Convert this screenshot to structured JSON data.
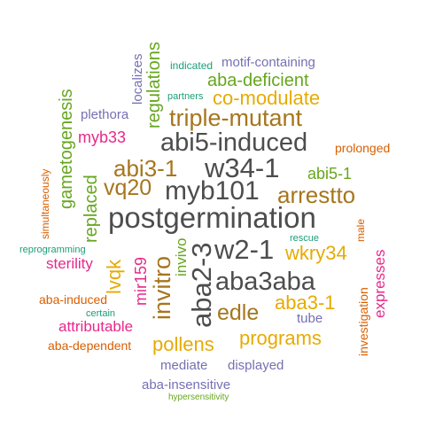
{
  "colors": {
    "dark_gray": "#4d4d4d",
    "brown": "#a6761d",
    "gold": "#e6ab02",
    "green": "#66a61e",
    "teal": "#1b9e77",
    "orange": "#d95f02",
    "purple": "#7570b3",
    "magenta": "#e7298a"
  },
  "words": {
    "postgermination": "postgermination",
    "abi5_induced": "abi5-induced",
    "w34_1": "w34-1",
    "myb101": "myb101",
    "aba3aba": "aba3aba",
    "w2_1": "w2-1",
    "aba2_3": "aba2-3",
    "triple_mutant": "triple-mutant",
    "abi3_1": "abi3-1",
    "arrestto": "arrestto",
    "vq20": "vq20",
    "invitro": "invitro",
    "edle": "edle",
    "co_modulate": "co-modulate",
    "regulations": "regulations",
    "aba_deficient": "aba-deficient",
    "gametogenesis": "gametogenesis",
    "replaced": "replaced",
    "abi5_1": "abi5-1",
    "wkry34": "wkry34",
    "aba3_1": "aba3-1",
    "programs": "programs",
    "pollens": "pollens",
    "lvqk": "lvqk",
    "invivo": "invivo",
    "mir159": "mir159",
    "myb33": "myb33",
    "sterility": "sterility",
    "attributable": "attributable",
    "expresses": "expresses",
    "motif_containing": "motif-containing",
    "localizes": "localizes",
    "plethora": "plethora",
    "mediate": "mediate",
    "displayed": "displayed",
    "aba_insensitive": "aba-insensitive",
    "tube": "tube",
    "aba_induced": "aba-induced",
    "aba_dependent": "aba-dependent",
    "investigation": "investigation",
    "prolonged": "prolonged",
    "simultaneously": "simultaneously",
    "male": "male",
    "indicated": "indicated",
    "partners": "partners",
    "reprogramming": "reprogramming",
    "rescue": "rescue",
    "certain": "certain",
    "hypersensitivity": "hypersensitivity"
  }
}
